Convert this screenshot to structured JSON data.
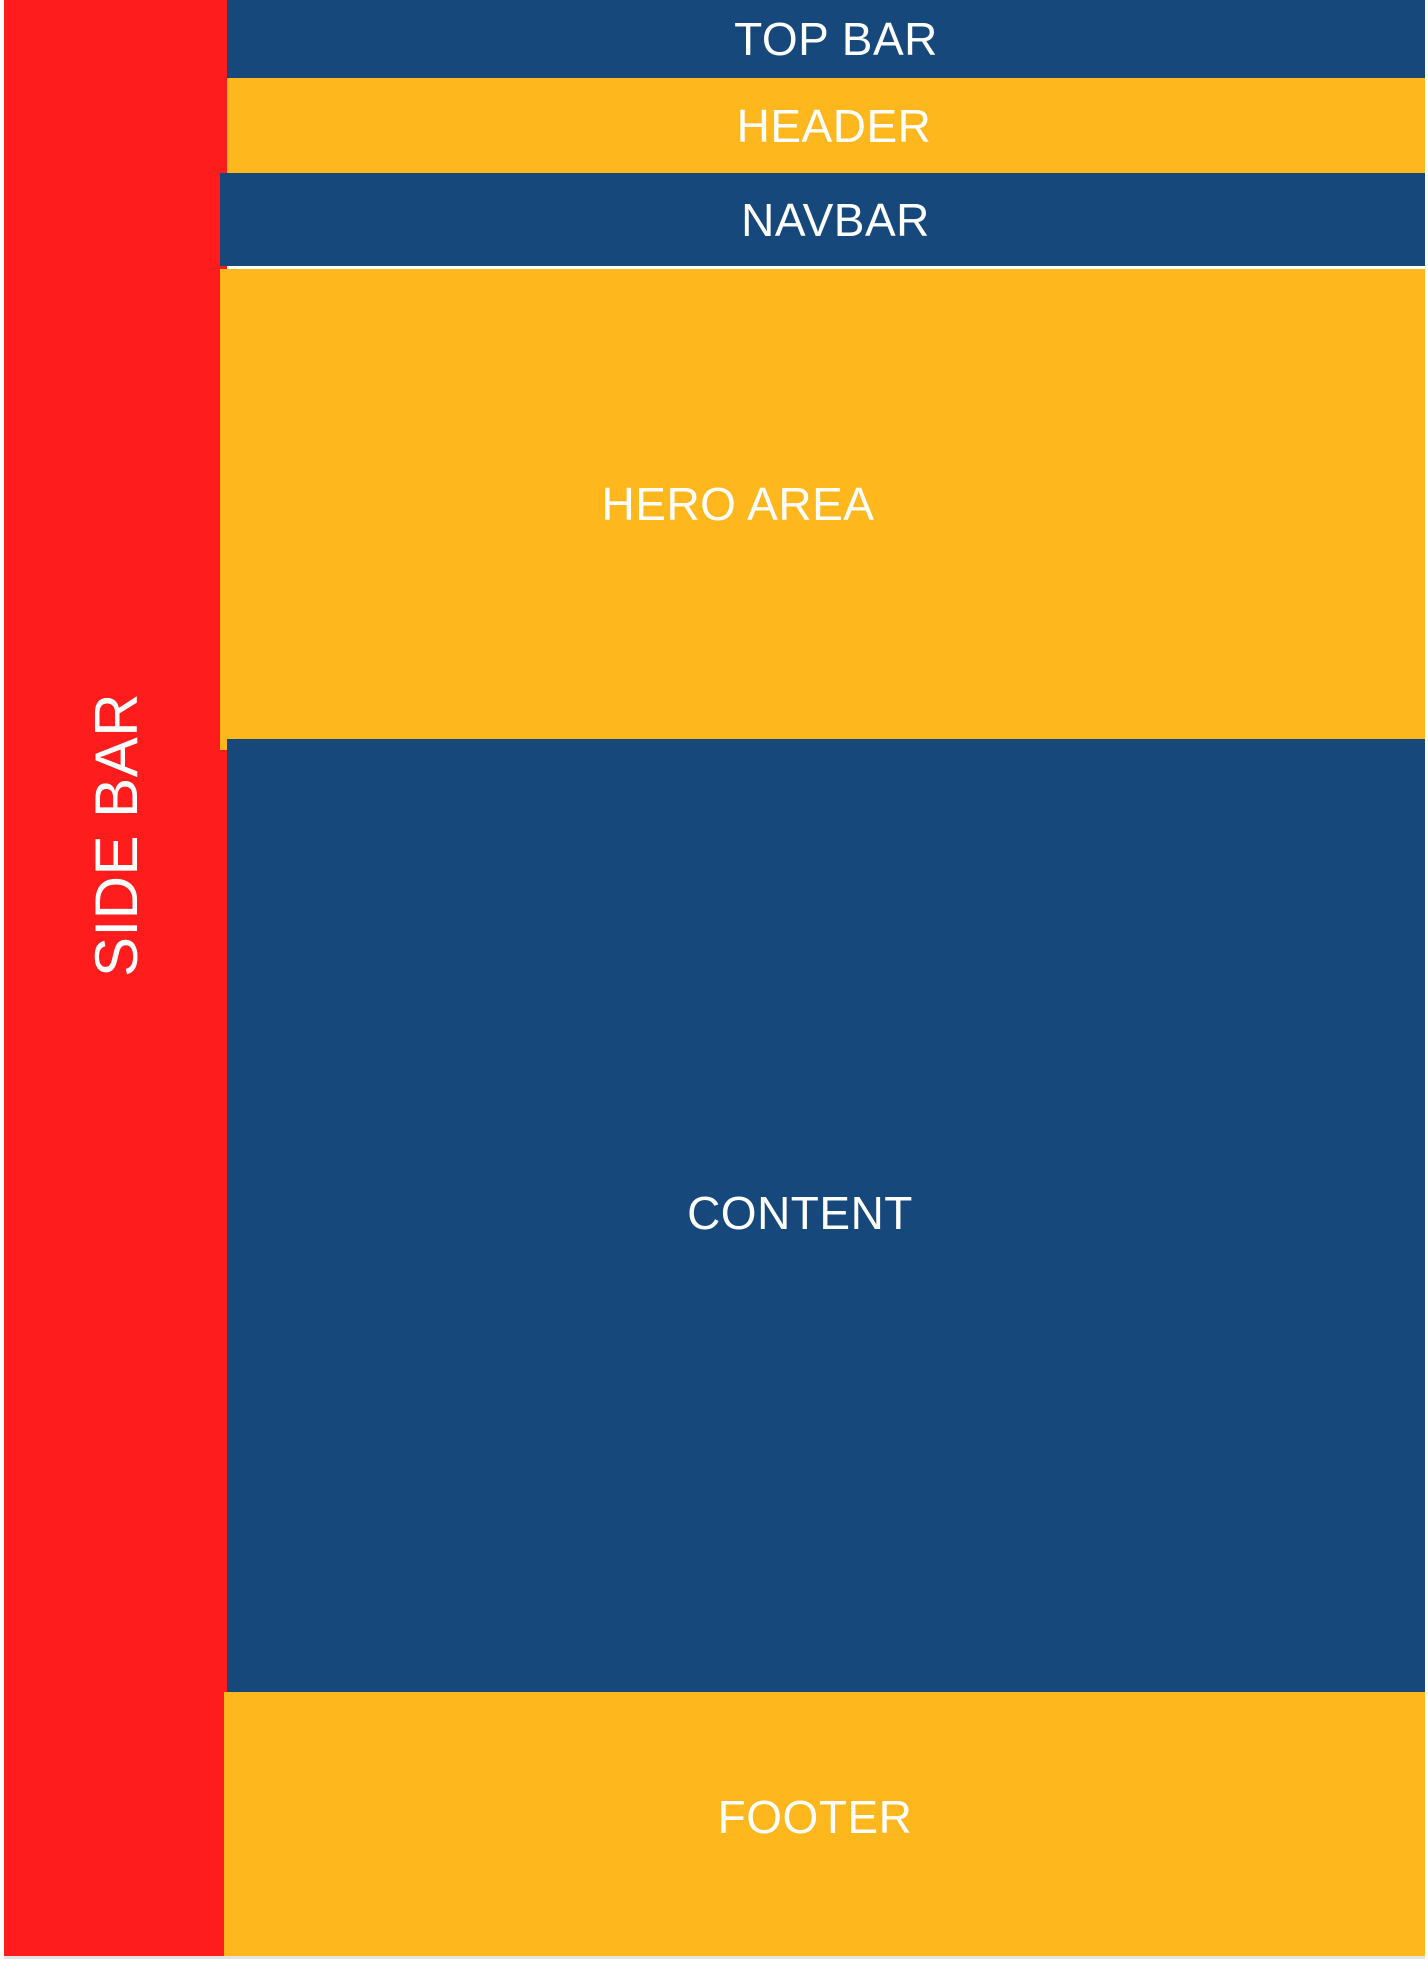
{
  "colors": {
    "sidebar": "#ff1c1c",
    "blue": "#17487b",
    "yellow": "#ffb71e"
  },
  "sidebar": {
    "label": "SIDE BAR"
  },
  "topbar": {
    "label": "TOP BAR"
  },
  "header": {
    "label": "HEADER"
  },
  "navbar": {
    "label": "NAVBAR"
  },
  "hero": {
    "label": "HERO AREA"
  },
  "content": {
    "label": "CONTENT"
  },
  "footer": {
    "label": "FOOTER"
  }
}
